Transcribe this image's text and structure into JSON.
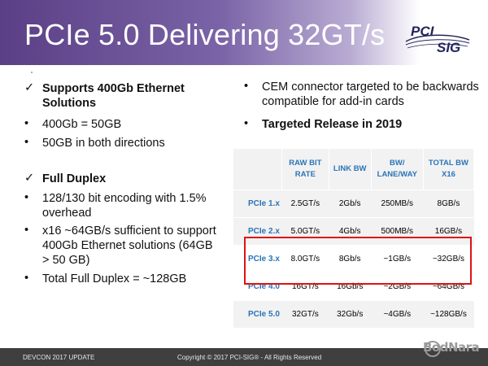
{
  "header": {
    "title": "PCIe 5.0 Delivering 32GT/s",
    "logo_text": "PCI SIG"
  },
  "left": {
    "items": [
      {
        "mark": "✓",
        "text": "Supports 400Gb Ethernet Solutions",
        "bold": true
      },
      {
        "mark": "•",
        "text": "400Gb = 50GB"
      },
      {
        "mark": "•",
        "text": "50GB in both directions"
      },
      {
        "mark": "✓",
        "text": "Full Duplex",
        "bold": true
      },
      {
        "mark": "•",
        "text": "128/130 bit encoding with 1.5% overhead"
      },
      {
        "mark": "•",
        "text": "x16 ~64GB/s sufficient to support 400Gb Ethernet solutions (64GB > 50 GB)"
      },
      {
        "mark": "•",
        "text": "Total Full Duplex = ~128GB"
      }
    ]
  },
  "right": {
    "items": [
      {
        "mark": "•",
        "text": "CEM connector targeted to be backwards compatible for add-in cards"
      },
      {
        "mark": "•",
        "text": "Targeted Release in 2019",
        "bold": true
      }
    ]
  },
  "table": {
    "headers": [
      "RAW BIT RATE",
      "LINK BW",
      "BW/ LANE/WAY",
      "TOTAL BW X16"
    ],
    "rows": [
      [
        "PCIe 1.x",
        "2.5GT/s",
        "2Gb/s",
        "250MB/s",
        "8GB/s"
      ],
      [
        "PCIe 2.x",
        "5.0GT/s",
        "4Gb/s",
        "500MB/s",
        "16GB/s"
      ],
      [
        "PCIe 3.x",
        "8.0GT/s",
        "8Gb/s",
        "~1GB/s",
        "~32GB/s"
      ],
      [
        "PCIe 4.0",
        "16GT/s",
        "16Gb/s",
        "~2GB/s",
        "~64GB/s"
      ],
      [
        "PCIe 5.0",
        "32GT/s",
        "32Gb/s",
        "~4GB/s",
        "~128GB/s"
      ]
    ]
  },
  "footer": {
    "left": "DEVCON 2017 UPDATE",
    "center": "Copyright © 2017 PCI-SIG® - All Rights Reserved"
  },
  "watermark": "BodNara",
  "colors": {
    "header": "#5b3f86",
    "accent": "#2b74b8",
    "highlight": "#e01212",
    "footer": "#3f3f3f"
  }
}
